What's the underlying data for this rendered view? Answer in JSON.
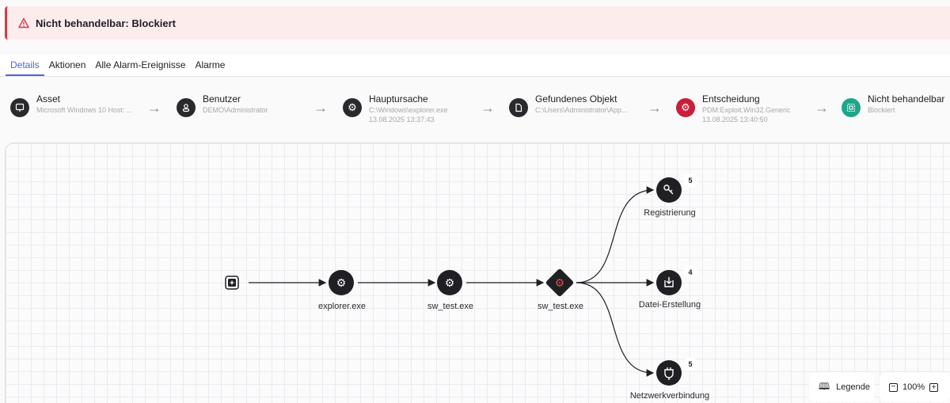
{
  "banner": {
    "icon": "warning-triangle-icon",
    "title": "Nicht behandelbar: Blockiert",
    "color": "#d9394a"
  },
  "tabs": [
    {
      "label": "Details",
      "active": true
    },
    {
      "label": "Aktionen"
    },
    {
      "label": "Alle Alarm-Ereignisse"
    },
    {
      "label": "Alarme"
    }
  ],
  "steps": [
    {
      "icon": "monitor-icon",
      "title": "Asset",
      "sub": "Microsoft Windows 10 Host: ..."
    },
    {
      "icon": "user-icon",
      "title": "Benutzer",
      "sub": "DEMO\\Administrator"
    },
    {
      "icon": "gear-icon",
      "title": "Hauptursache",
      "sub": "C:\\Windows\\explorer.exe",
      "sub2": "13.08.2025 13:37:43"
    },
    {
      "icon": "file-icon",
      "title": "Gefundenes Objekt",
      "sub": "C:\\Users\\Administrator\\App..."
    },
    {
      "icon": "gear-icon",
      "title": "Entscheidung",
      "sub": "PDM:Exploit.Win32.Generic",
      "sub2": "13.08.2025 13:40:50",
      "color": "#c8203a"
    },
    {
      "icon": "quarantine-icon",
      "title": "Nicht behandelbar",
      "sub": "Blockiert",
      "color": "#1ea58a"
    }
  ],
  "graph": {
    "nodes": [
      {
        "label": "explorer.exe"
      },
      {
        "label": "sw_test.exe"
      },
      {
        "label": "sw_test.exe",
        "detected": true
      },
      {
        "label": "Registrierung",
        "count": "5",
        "icon": "key-icon"
      },
      {
        "label": "Datei-Erstellung",
        "count": "4",
        "icon": "download-icon"
      },
      {
        "label": "Netzwerkverbindung",
        "count": "5",
        "icon": "plug-icon"
      }
    ]
  },
  "controls": {
    "legend": "Legende",
    "zoom": "100%"
  }
}
